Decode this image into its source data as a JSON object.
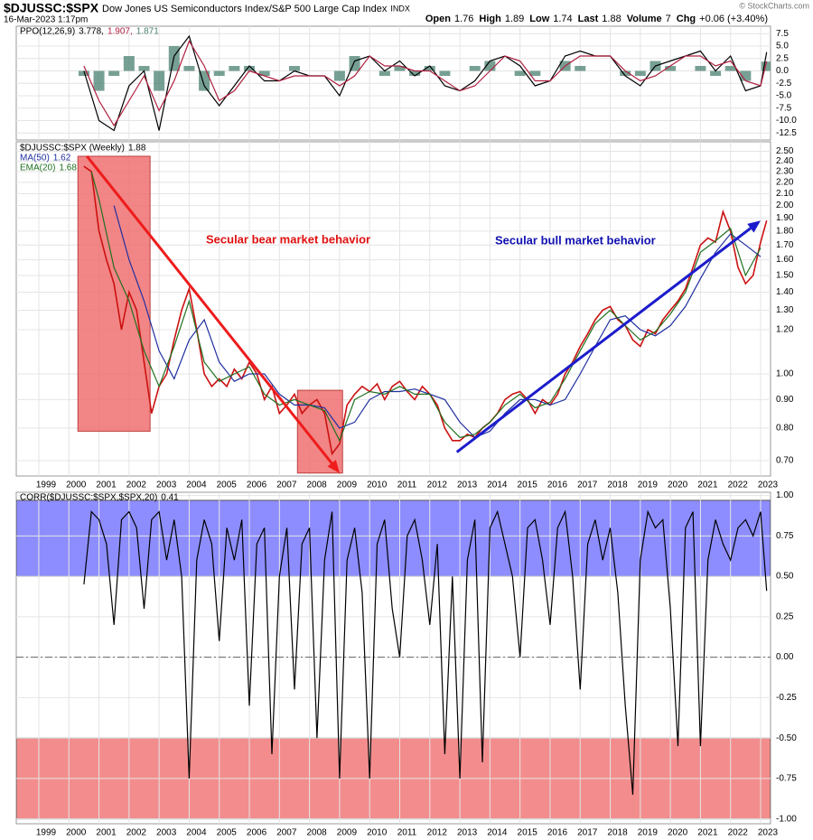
{
  "header": {
    "symbol": "$DJUSSC:$SPX",
    "description": "Dow Jones US Semiconductors Index/S&P 500 Large Cap Index",
    "exchange": "INDX",
    "timestamp": "16-Mar-2023 1:17pm",
    "copyright": "© StockCharts.com",
    "quote": [
      {
        "label": "Open",
        "value": "1.76"
      },
      {
        "label": "High",
        "value": "1.89"
      },
      {
        "label": "Low",
        "value": "1.74"
      },
      {
        "label": "Last",
        "value": "1.88"
      },
      {
        "label": "Volume",
        "value": "7"
      },
      {
        "label": "Chg",
        "value": "+0.06 (+3.40%)"
      }
    ]
  },
  "chart_data": [
    {
      "type": "line",
      "title": "PPO(12,26,9)",
      "grid": true,
      "xlabels": false,
      "xlim": [
        1998.25,
        2023.33
      ],
      "xticks": [
        1999,
        2000,
        2001,
        2002,
        2003,
        2004,
        2005,
        2006,
        2007,
        2008,
        2009,
        2010,
        2011,
        2012,
        2013,
        2014,
        2015,
        2016,
        2017,
        2018,
        2019,
        2020,
        2021,
        2022,
        2023
      ],
      "ylim": [
        -13.9,
        9.0
      ],
      "yticks": [
        7.5,
        {
          "value": 5,
          "label": "5.0"
        },
        2.5,
        {
          "value": 0,
          "label": "0.0"
        },
        -2.5,
        {
          "value": -5,
          "label": "-5.0"
        },
        -7.5,
        {
          "value": -10,
          "label": "-10.0"
        },
        -12.5
      ],
      "x": [
        2000.5,
        2001.0,
        2001.5,
        2002.0,
        2002.5,
        2003.0,
        2003.5,
        2004.0,
        2004.5,
        2005.0,
        2005.5,
        2006.0,
        2006.5,
        2007.0,
        2007.5,
        2008.0,
        2008.5,
        2009.0,
        2009.5,
        2010.0,
        2010.5,
        2011.0,
        2011.5,
        2012.0,
        2012.5,
        2013.0,
        2013.5,
        2014.0,
        2014.5,
        2015.0,
        2015.5,
        2016.0,
        2016.5,
        2017.0,
        2017.5,
        2018.0,
        2018.5,
        2019.0,
        2019.5,
        2020.0,
        2020.5,
        2021.0,
        2021.5,
        2022.0,
        2022.5,
        2023.0,
        2023.2
      ],
      "series": [
        {
          "type": "bar",
          "label": "1.871",
          "color": "#4a8070",
          "values": [
            -1,
            -4,
            -1,
            3,
            1,
            -4,
            5,
            1,
            -4,
            -1,
            1,
            1,
            -1,
            0,
            1,
            0,
            0,
            -2,
            3,
            0,
            -1,
            1,
            -1,
            1,
            -1,
            0,
            1,
            2,
            0,
            -1,
            -1,
            0,
            2,
            1,
            0,
            0,
            -1,
            -1,
            2,
            1,
            0,
            1,
            -1,
            1,
            -2,
            0,
            1.871
          ]
        },
        {
          "type": "line",
          "label": "3.778,",
          "color": "#000000",
          "values": [
            0,
            -10,
            -12,
            -3,
            0,
            -12,
            3,
            7,
            -3,
            -7,
            -3,
            1,
            -2,
            -2,
            0,
            -1,
            -1,
            -5,
            2,
            3,
            0,
            2,
            -1,
            1,
            -3,
            -4,
            -2,
            2,
            3,
            1,
            -3,
            -2,
            3,
            4,
            3,
            3,
            -1,
            -3,
            1,
            2,
            3,
            4,
            0,
            3,
            -4,
            -3,
            3.778
          ]
        },
        {
          "type": "line",
          "label": "1.907,",
          "color": "#b02040",
          "values": [
            1,
            -6,
            -11,
            -6,
            -1,
            -8,
            -2,
            6,
            1,
            -6,
            -4,
            0,
            -1,
            -2,
            -1,
            -1,
            -1,
            -3,
            -1,
            3,
            1,
            1,
            0,
            0,
            -2,
            -4,
            -3,
            0,
            3,
            2,
            -2,
            -2,
            1,
            3,
            3,
            3,
            0,
            -2,
            -1,
            1,
            3,
            3,
            1,
            2,
            -2,
            -3,
            1.907
          ]
        }
      ]
    },
    {
      "type": "line",
      "log": true,
      "grid": true,
      "xlabels": true,
      "xlim": [
        1998.25,
        2023.33
      ],
      "xticks": [
        1999,
        2000,
        2001,
        2002,
        2003,
        2004,
        2005,
        2006,
        2007,
        2008,
        2009,
        2010,
        2011,
        2012,
        2013,
        2014,
        2015,
        2016,
        2017,
        2018,
        2019,
        2020,
        2021,
        2022,
        2023
      ],
      "ylim": [
        0.657,
        2.6
      ],
      "yticks": [
        {
          "value": 0.7,
          "label": "0.70"
        },
        {
          "value": 0.8,
          "label": "0.80"
        },
        {
          "value": 0.9,
          "label": "0.90"
        },
        {
          "value": 1.0,
          "label": "1.00"
        },
        {
          "value": 1.2,
          "label": "1.20"
        },
        {
          "value": 1.3,
          "label": "1.30"
        },
        {
          "value": 1.4,
          "label": "1.40"
        },
        {
          "value": 1.5,
          "label": "1.50"
        },
        {
          "value": 1.6,
          "label": "1.60"
        },
        {
          "value": 1.7,
          "label": "1.70"
        },
        {
          "value": 1.8,
          "label": "1.80"
        },
        {
          "value": 1.9,
          "label": "1.90"
        },
        {
          "value": 2.0,
          "label": "2.00"
        },
        {
          "value": 2.1,
          "label": "2.10"
        },
        {
          "value": 2.2,
          "label": "2.20"
        },
        {
          "value": 2.3,
          "label": "2.30"
        },
        {
          "value": 2.4,
          "label": "2.40"
        },
        {
          "value": 2.5,
          "label": "2.50"
        }
      ],
      "regions": [
        {
          "x": [
            2000.3,
            2002.7
          ],
          "y": [
            0.79,
            2.45
          ],
          "color": "#f07070"
        },
        {
          "x": [
            2007.6,
            2009.1
          ],
          "y": [
            0.665,
            0.935
          ],
          "color": "#f07070"
        }
      ],
      "arrows": [
        {
          "from": [
            2000.6,
            2.45
          ],
          "to": [
            2009.0,
            0.665
          ],
          "color": "#ee1c1c"
        },
        {
          "from": [
            2012.9,
            0.725
          ],
          "to": [
            2023.0,
            1.88
          ],
          "color": "#1c1ccc"
        }
      ],
      "annotations": [
        {
          "text": "Secular bear market behavior",
          "color": "#e01010"
        },
        {
          "text": "Secular bull market behavior",
          "color": "#1010b0"
        }
      ],
      "x": [
        2000.5,
        2000.75,
        2001.0,
        2001.25,
        2001.5,
        2001.75,
        2002.0,
        2002.25,
        2002.5,
        2002.75,
        2003.0,
        2003.25,
        2003.5,
        2003.75,
        2004.0,
        2004.25,
        2004.5,
        2004.75,
        2005.0,
        2005.25,
        2005.5,
        2005.75,
        2006.0,
        2006.25,
        2006.5,
        2006.75,
        2007.0,
        2007.25,
        2007.5,
        2007.75,
        2008.0,
        2008.25,
        2008.5,
        2008.75,
        2009.0,
        2009.25,
        2009.5,
        2009.75,
        2010.0,
        2010.25,
        2010.5,
        2010.75,
        2011.0,
        2011.25,
        2011.5,
        2011.75,
        2012.0,
        2012.25,
        2012.5,
        2012.75,
        2013.0,
        2013.25,
        2013.5,
        2013.75,
        2014.0,
        2014.25,
        2014.5,
        2014.75,
        2015.0,
        2015.25,
        2015.5,
        2015.75,
        2016.0,
        2016.25,
        2016.5,
        2016.75,
        2017.0,
        2017.25,
        2017.5,
        2017.75,
        2018.0,
        2018.25,
        2018.5,
        2018.75,
        2019.0,
        2019.25,
        2019.5,
        2019.75,
        2020.0,
        2020.25,
        2020.5,
        2020.75,
        2021.0,
        2021.25,
        2021.5,
        2021.75,
        2022.0,
        2022.25,
        2022.5,
        2022.75,
        2023.0,
        2023.2
      ],
      "series": [
        {
          "type": "line",
          "name": "$DJUSSC:$SPX (Weekly)",
          "label": "1.88",
          "color": "#cc1111",
          "legend_color": "#000000",
          "values": [
            2.35,
            2.3,
            1.8,
            1.6,
            1.45,
            1.2,
            1.4,
            1.3,
            1.05,
            0.85,
            0.95,
            1.0,
            1.15,
            1.3,
            1.42,
            1.2,
            1.0,
            0.95,
            0.98,
            0.95,
            1.02,
            0.98,
            1.05,
            1.0,
            0.9,
            0.95,
            0.85,
            0.88,
            0.92,
            0.85,
            0.88,
            0.9,
            0.85,
            0.72,
            0.75,
            0.88,
            0.92,
            0.95,
            0.93,
            0.96,
            0.9,
            0.95,
            0.97,
            0.93,
            0.9,
            0.95,
            0.92,
            0.88,
            0.8,
            0.76,
            0.76,
            0.78,
            0.77,
            0.8,
            0.82,
            0.85,
            0.9,
            0.92,
            0.93,
            0.9,
            0.85,
            0.9,
            0.88,
            0.92,
            1.0,
            1.05,
            1.12,
            1.18,
            1.25,
            1.3,
            1.32,
            1.25,
            1.22,
            1.15,
            1.12,
            1.2,
            1.18,
            1.25,
            1.3,
            1.35,
            1.42,
            1.55,
            1.7,
            1.75,
            1.72,
            1.95,
            1.8,
            1.55,
            1.45,
            1.5,
            1.72,
            1.88
          ]
        },
        {
          "type": "line",
          "name": "MA(50)",
          "label": "1.62",
          "color": "#2030a0",
          "x": [
            2001.5,
            2002.0,
            2002.5,
            2003.0,
            2003.5,
            2004.0,
            2004.5,
            2005.0,
            2005.5,
            2006.0,
            2006.5,
            2007.0,
            2007.5,
            2008.0,
            2008.5,
            2009.0,
            2009.5,
            2010.0,
            2010.5,
            2011.0,
            2011.5,
            2012.0,
            2012.5,
            2013.0,
            2013.5,
            2014.0,
            2014.5,
            2015.0,
            2015.5,
            2016.0,
            2016.5,
            2017.0,
            2017.5,
            2018.0,
            2018.5,
            2019.0,
            2019.5,
            2020.0,
            2020.5,
            2021.0,
            2021.5,
            2022.0,
            2022.5,
            2023.0
          ],
          "values": [
            2.0,
            1.6,
            1.35,
            1.1,
            0.98,
            1.15,
            1.25,
            1.05,
            0.97,
            1.0,
            1.0,
            0.92,
            0.88,
            0.88,
            0.87,
            0.8,
            0.82,
            0.9,
            0.93,
            0.93,
            0.94,
            0.92,
            0.9,
            0.82,
            0.77,
            0.79,
            0.85,
            0.9,
            0.9,
            0.88,
            0.9,
            1.0,
            1.12,
            1.25,
            1.27,
            1.2,
            1.17,
            1.22,
            1.32,
            1.48,
            1.65,
            1.78,
            1.7,
            1.62
          ]
        },
        {
          "type": "line",
          "name": "EMA(20)",
          "label": "1.68",
          "color": "#207020",
          "x": [
            2000.75,
            2001.0,
            2001.5,
            2002.0,
            2002.5,
            2003.0,
            2003.5,
            2004.0,
            2004.5,
            2005.0,
            2005.5,
            2006.0,
            2006.5,
            2007.0,
            2007.5,
            2008.0,
            2008.5,
            2009.0,
            2009.5,
            2010.0,
            2010.5,
            2011.0,
            2011.5,
            2012.0,
            2012.5,
            2013.0,
            2013.5,
            2014.0,
            2014.5,
            2015.0,
            2015.5,
            2016.0,
            2016.5,
            2017.0,
            2017.5,
            2018.0,
            2018.5,
            2019.0,
            2019.5,
            2020.0,
            2020.5,
            2021.0,
            2021.5,
            2022.0,
            2022.5,
            2023.0
          ],
          "values": [
            2.3,
            2.05,
            1.55,
            1.35,
            1.1,
            0.95,
            1.12,
            1.35,
            1.05,
            0.97,
            1.0,
            1.03,
            0.92,
            0.88,
            0.9,
            0.88,
            0.86,
            0.76,
            0.9,
            0.93,
            0.92,
            0.95,
            0.92,
            0.92,
            0.82,
            0.77,
            0.78,
            0.82,
            0.88,
            0.92,
            0.87,
            0.89,
            0.98,
            1.1,
            1.23,
            1.3,
            1.22,
            1.15,
            1.19,
            1.28,
            1.4,
            1.65,
            1.73,
            1.82,
            1.5,
            1.68
          ]
        }
      ]
    },
    {
      "type": "line",
      "title": "CORR($DJUSSC:$SPX,$SPX,20)",
      "grid": true,
      "xlabels": true,
      "xlim": [
        1998.25,
        2023.33
      ],
      "xticks": [
        1999,
        2000,
        2001,
        2002,
        2003,
        2004,
        2005,
        2006,
        2007,
        2008,
        2009,
        2010,
        2011,
        2012,
        2013,
        2014,
        2015,
        2016,
        2017,
        2018,
        2019,
        2020,
        2021,
        2022,
        2023
      ],
      "ylim": [
        -1.03,
        1.02
      ],
      "yticks": [
        {
          "value": 1,
          "label": "1.00"
        },
        0.75,
        {
          "value": 0.5,
          "label": "0.50"
        },
        0.25,
        {
          "value": 0,
          "label": "0.00"
        },
        -0.25,
        {
          "value": -0.5,
          "label": "-0.50"
        },
        -0.75,
        {
          "value": -1,
          "label": "-1.00"
        }
      ],
      "reference_line": 0,
      "bands": [
        {
          "y": [
            0.5,
            0.97
          ],
          "color": "#7070ff"
        },
        {
          "y": [
            -1.0,
            -0.5
          ],
          "color": "#f07070"
        }
      ],
      "x": [
        2000.5,
        2000.75,
        2001.0,
        2001.25,
        2001.5,
        2001.75,
        2002.0,
        2002.25,
        2002.5,
        2002.75,
        2003.0,
        2003.25,
        2003.5,
        2003.75,
        2004.0,
        2004.25,
        2004.5,
        2004.75,
        2005.0,
        2005.25,
        2005.5,
        2005.75,
        2006.0,
        2006.25,
        2006.5,
        2006.75,
        2007.0,
        2007.25,
        2007.5,
        2007.75,
        2008.0,
        2008.25,
        2008.5,
        2008.75,
        2009.0,
        2009.25,
        2009.5,
        2009.75,
        2010.0,
        2010.25,
        2010.5,
        2010.75,
        2011.0,
        2011.25,
        2011.5,
        2011.75,
        2012.0,
        2012.25,
        2012.5,
        2012.75,
        2013.0,
        2013.25,
        2013.5,
        2013.75,
        2014.0,
        2014.25,
        2014.5,
        2014.75,
        2015.0,
        2015.25,
        2015.5,
        2015.75,
        2016.0,
        2016.25,
        2016.5,
        2016.75,
        2017.0,
        2017.25,
        2017.5,
        2017.75,
        2018.0,
        2018.25,
        2018.5,
        2018.75,
        2019.0,
        2019.25,
        2019.5,
        2019.75,
        2020.0,
        2020.25,
        2020.5,
        2020.75,
        2021.0,
        2021.25,
        2021.5,
        2021.75,
        2022.0,
        2022.25,
        2022.5,
        2022.75,
        2023.0,
        2023.2
      ],
      "series": [
        {
          "type": "line",
          "label": "0.41",
          "color": "#000000",
          "values": [
            0.45,
            0.9,
            0.85,
            0.7,
            0.2,
            0.85,
            0.9,
            0.8,
            0.3,
            0.85,
            0.9,
            0.6,
            0.85,
            0.5,
            -0.75,
            0.6,
            0.85,
            0.7,
            0.1,
            0.8,
            0.6,
            0.85,
            -0.3,
            0.7,
            0.8,
            -0.6,
            0.5,
            0.8,
            -0.2,
            0.7,
            0.8,
            -0.5,
            0.6,
            0.9,
            -0.75,
            0.6,
            0.8,
            0.4,
            -0.75,
            0.7,
            0.85,
            0.3,
            0,
            0.75,
            0.85,
            0.6,
            0.2,
            0.7,
            -0.6,
            0.5,
            -0.75,
            0.6,
            0.85,
            -0.65,
            0.8,
            0.9,
            0.7,
            0.5,
            0,
            0.8,
            0.85,
            0.6,
            0.2,
            0.8,
            0.9,
            0.5,
            -0.2,
            0.7,
            0.85,
            0.6,
            0.8,
            0.4,
            -0.3,
            -0.85,
            0.6,
            0.9,
            0.8,
            0.85,
            0.3,
            -0.55,
            0.8,
            0.9,
            -0.55,
            0.6,
            0.85,
            0.7,
            0.6,
            0.8,
            0.85,
            0.75,
            0.9,
            0.41
          ]
        }
      ]
    }
  ]
}
